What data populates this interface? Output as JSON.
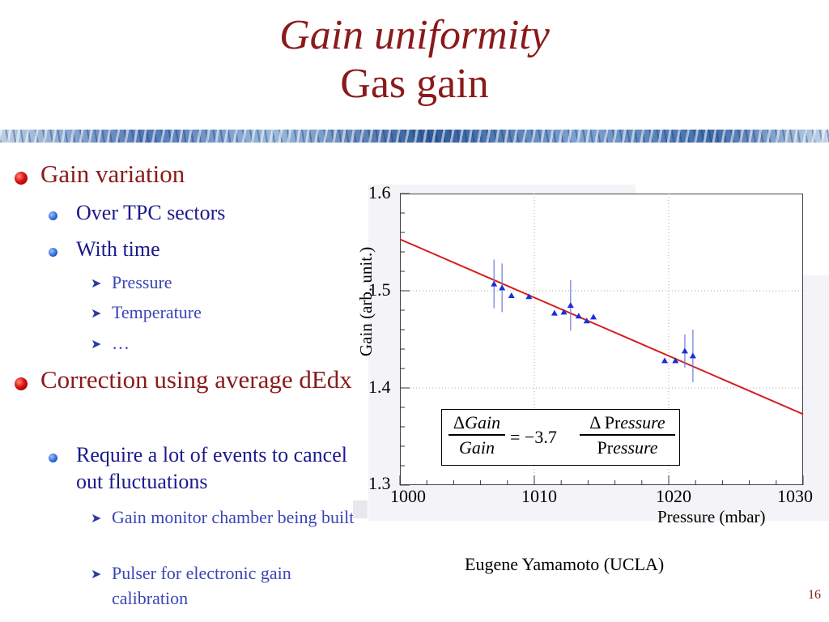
{
  "slide": {
    "title_line1": "Gain uniformity",
    "title_line2": "Gas gain",
    "page_number": "16",
    "credit": "Eugene Yamamoto (UCLA)"
  },
  "bullets": {
    "b1": "Gain variation",
    "b1_sub1": "Over TPC sectors",
    "b1_sub2": "With time",
    "b1_sub2_items": [
      "Pressure",
      "Temperature",
      "…"
    ],
    "b2": "Correction using average dEdx",
    "b2_sub1": "Require a lot of events to cancel out fluctuations",
    "b2_sub1_items": [
      "Gain monitor chamber being built",
      "Pulser for electronic gain calibration"
    ]
  },
  "formula": {
    "lhs_num_delta": "Δ",
    "lhs_num_var": "Gain",
    "lhs_den_var": "Gain",
    "equals": "= −3.7",
    "rhs_num_delta": "Δ",
    "rhs_num_pr": "Pr",
    "rhs_num_essure": "essure",
    "rhs_den_pr": "Pr",
    "rhs_den_essure": "essure"
  },
  "chart_data": {
    "type": "scatter",
    "xlabel": "Pressure (mbar)",
    "ylabel": "Gain (arb. unit.)",
    "xlim": [
      1000,
      1030
    ],
    "ylim": [
      1.3,
      1.6
    ],
    "x_ticks": [
      "1000",
      "1010",
      "1020",
      "1030"
    ],
    "y_ticks": [
      "1.3",
      "1.4",
      "1.5",
      "1.6"
    ],
    "grid": true,
    "colors": {
      "points": "#1a2fd6",
      "fit": "#d42020",
      "errorbar": "#6d7ad6"
    },
    "points": [
      {
        "x": 1007.0,
        "y": 1.507,
        "yerr": 0.025
      },
      {
        "x": 1007.6,
        "y": 1.503,
        "yerr": 0.025
      },
      {
        "x": 1008.3,
        "y": 1.495,
        "yerr": 0
      },
      {
        "x": 1009.6,
        "y": 1.494,
        "yerr": 0
      },
      {
        "x": 1011.5,
        "y": 1.477,
        "yerr": 0
      },
      {
        "x": 1012.2,
        "y": 1.478,
        "yerr": 0
      },
      {
        "x": 1012.7,
        "y": 1.485,
        "yerr": 0.026
      },
      {
        "x": 1013.3,
        "y": 1.474,
        "yerr": 0
      },
      {
        "x": 1013.9,
        "y": 1.469,
        "yerr": 0
      },
      {
        "x": 1014.4,
        "y": 1.473,
        "yerr": 0
      },
      {
        "x": 1019.7,
        "y": 1.428,
        "yerr": 0
      },
      {
        "x": 1020.5,
        "y": 1.428,
        "yerr": 0
      },
      {
        "x": 1021.2,
        "y": 1.438,
        "yerr": 0.017
      },
      {
        "x": 1021.8,
        "y": 1.433,
        "yerr": 0.027
      }
    ],
    "fit_line": {
      "x": [
        1000,
        1030
      ],
      "y": [
        1.553,
        1.373
      ]
    }
  }
}
